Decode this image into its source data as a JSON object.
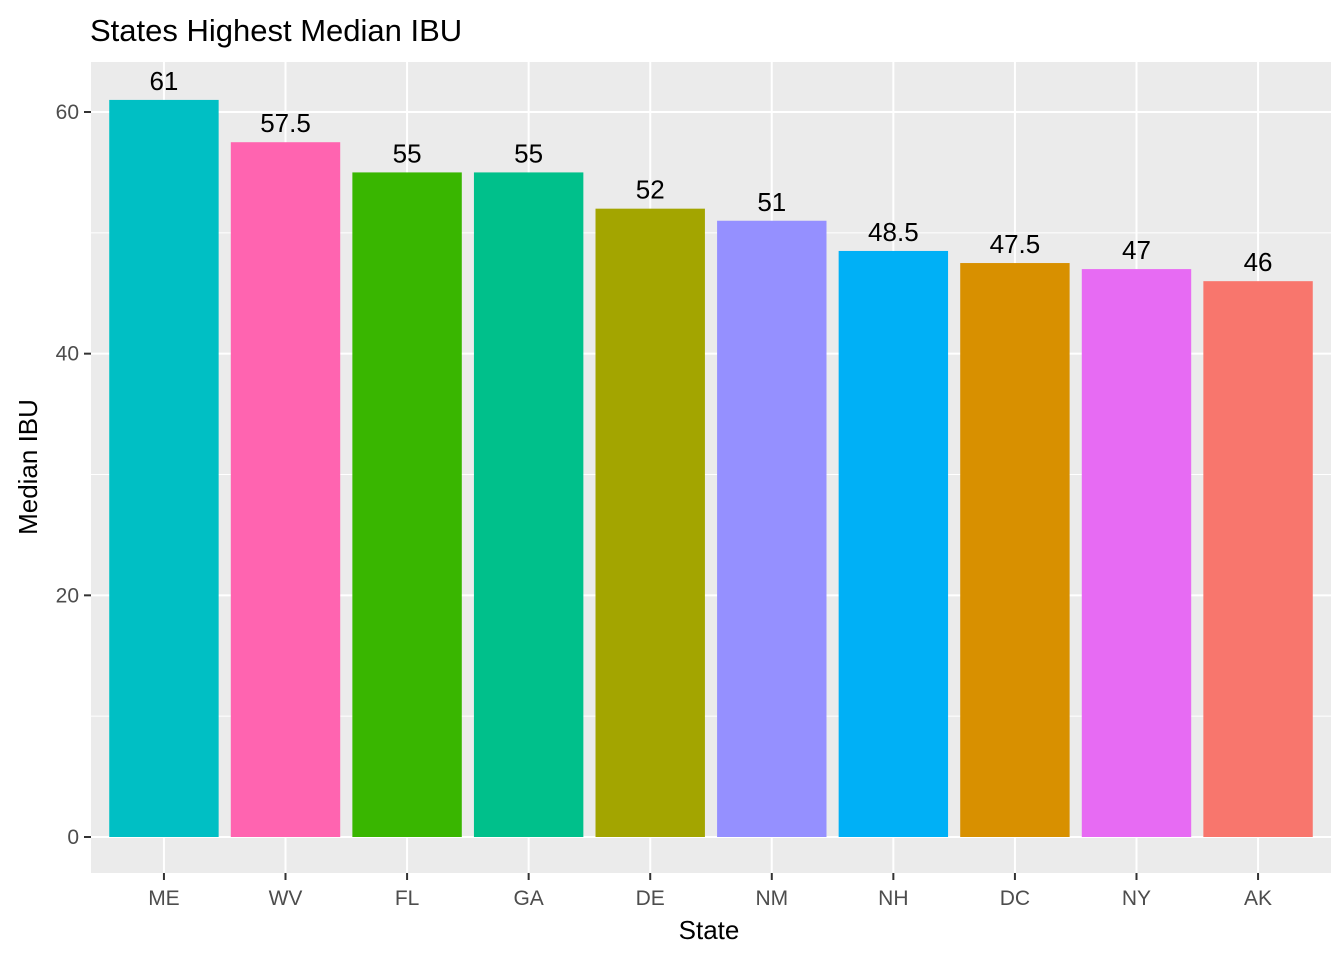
{
  "chart_data": {
    "type": "bar",
    "title": "States Highest Median IBU",
    "xlabel": "State",
    "ylabel": "Median IBU",
    "categories": [
      "ME",
      "WV",
      "FL",
      "GA",
      "DE",
      "NM",
      "NH",
      "DC",
      "NY",
      "AK"
    ],
    "values": [
      61,
      57.5,
      55,
      55,
      52,
      51,
      48.5,
      47.5,
      47,
      46
    ],
    "data_labels": [
      "61",
      "57.5",
      "55",
      "55",
      "52",
      "51",
      "48.5",
      "47.5",
      "47",
      "46"
    ],
    "colors": [
      "#00BFC4",
      "#FF64B0",
      "#39B600",
      "#00C08B",
      "#A3A500",
      "#9590FF",
      "#00B0F6",
      "#D89000",
      "#E76BF3",
      "#F8766D"
    ],
    "ylim": [
      0,
      64
    ],
    "yticks": [
      0,
      20,
      40,
      60
    ],
    "ytick_labels": [
      "0",
      "20",
      "40",
      "60"
    ],
    "grid": true,
    "legend": "none",
    "panel_background": "#EBEBEB",
    "grid_color": "#FFFFFF"
  }
}
